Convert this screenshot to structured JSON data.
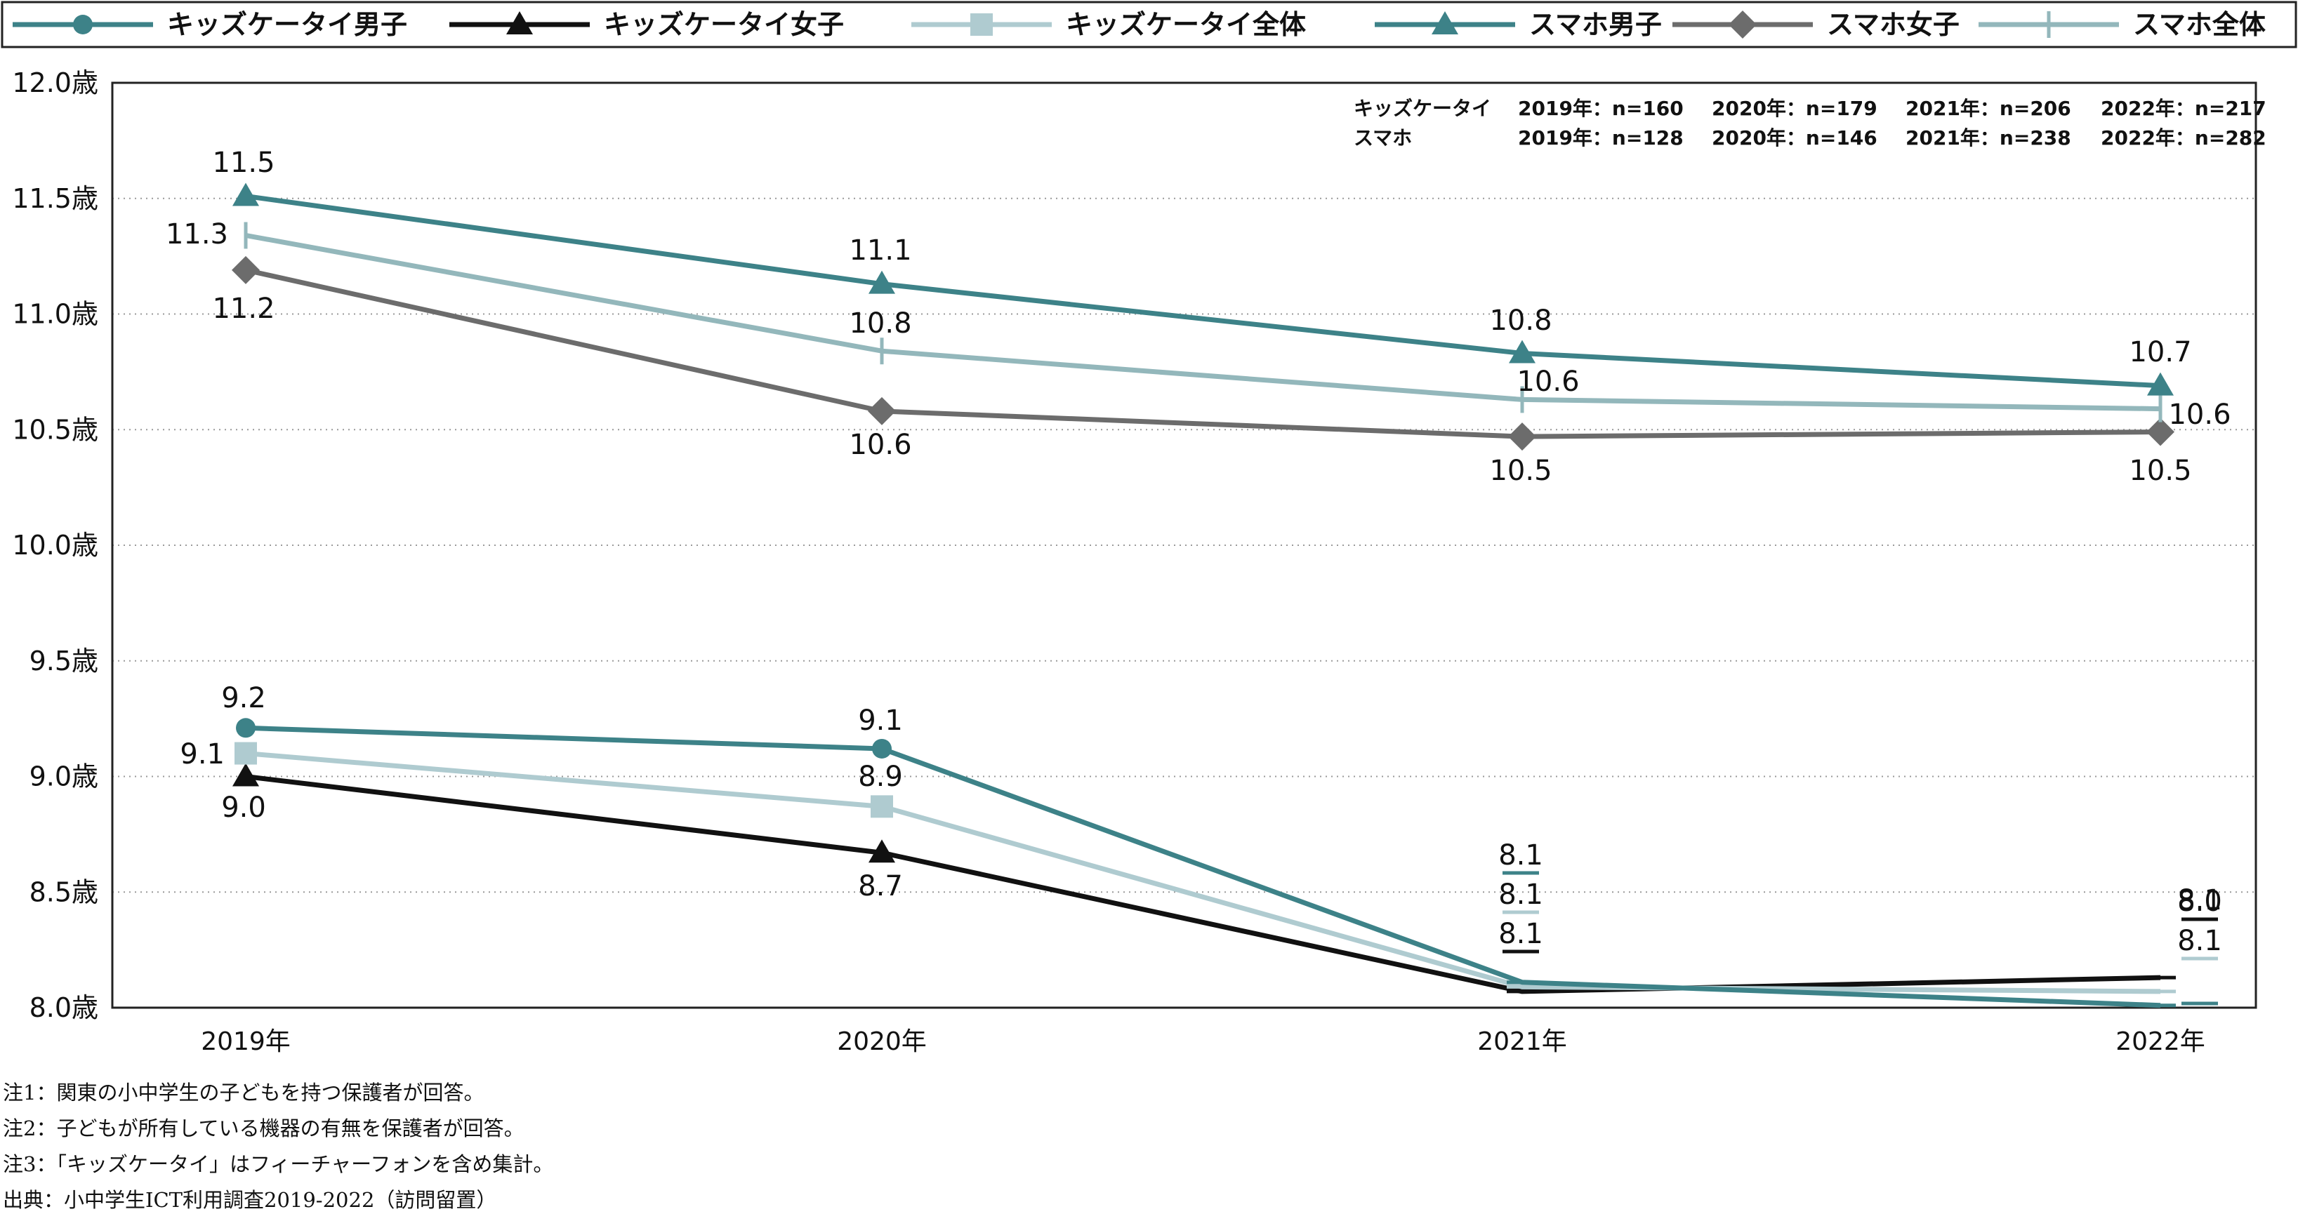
{
  "chart_data": {
    "type": "line",
    "categories": [
      "2019年",
      "2020年",
      "2021年",
      "2022年"
    ],
    "y_ticks": [
      "12.0歳",
      "11.5歳",
      "11.0歳",
      "10.5歳",
      "10.0歳",
      "9.5歳",
      "9.0歳",
      "8.5歳",
      "8.0歳"
    ],
    "ylim": [
      8.0,
      12.0
    ],
    "grid": "horizontal dotted",
    "legend_position": "top",
    "series": [
      {
        "name": "キッズケータイ男子",
        "values": [
          9.21,
          9.12,
          8.11,
          8.01
        ],
        "labels": [
          "9.2",
          "9.1",
          "8.1",
          "8.0"
        ],
        "color": "#3d8288",
        "marker": "circle"
      },
      {
        "name": "キッズケータイ女子",
        "values": [
          9.0,
          8.67,
          8.07,
          8.13
        ],
        "labels": [
          "9.0",
          "8.7",
          "8.1",
          "8.1"
        ],
        "color": "#111111",
        "marker": "triangle"
      },
      {
        "name": "キッズケータイ全体",
        "values": [
          9.1,
          8.87,
          8.09,
          8.07
        ],
        "labels": [
          "9.1",
          "8.9",
          "8.1",
          "8.1"
        ],
        "color": "#afcbd0",
        "marker": "square"
      },
      {
        "name": "スマホ男子",
        "values": [
          11.51,
          11.13,
          10.83,
          10.69
        ],
        "labels": [
          "11.5",
          "11.1",
          "10.8",
          "10.7"
        ],
        "color": "#3d8288",
        "marker": "triangle"
      },
      {
        "name": "スマホ女子",
        "values": [
          11.19,
          10.58,
          10.47,
          10.49
        ],
        "labels": [
          "11.2",
          "10.6",
          "10.5",
          "10.5"
        ],
        "color": "#6c6c6c",
        "marker": "diamond"
      },
      {
        "name": "スマホ全体",
        "values": [
          11.34,
          10.84,
          10.63,
          10.59
        ],
        "labels": [
          "11.3",
          "10.8",
          "10.6",
          "10.6"
        ],
        "color": "#93b7bb",
        "marker": "plus"
      }
    ],
    "sample_sizes": [
      {
        "group": "キッズケータイ",
        "entries": [
          "2019年：n=160",
          "2020年：n=179",
          "2021年：n=206",
          "2022年：n=217"
        ]
      },
      {
        "group": "スマホ",
        "entries": [
          "2019年：n=128",
          "2020年：n=146",
          "2021年：n=238",
          "2022年：n=282"
        ]
      }
    ]
  },
  "notes": [
    "注1：関東の小中学生の子どもを持つ保護者が回答。",
    "注2：子どもが所有している機器の有無を保護者が回答。",
    "注3：「キッズケータイ」はフィーチャーフォンを含め集計。",
    "出典：小中学生ICT利用調査2019-2022（訪問留置）"
  ]
}
